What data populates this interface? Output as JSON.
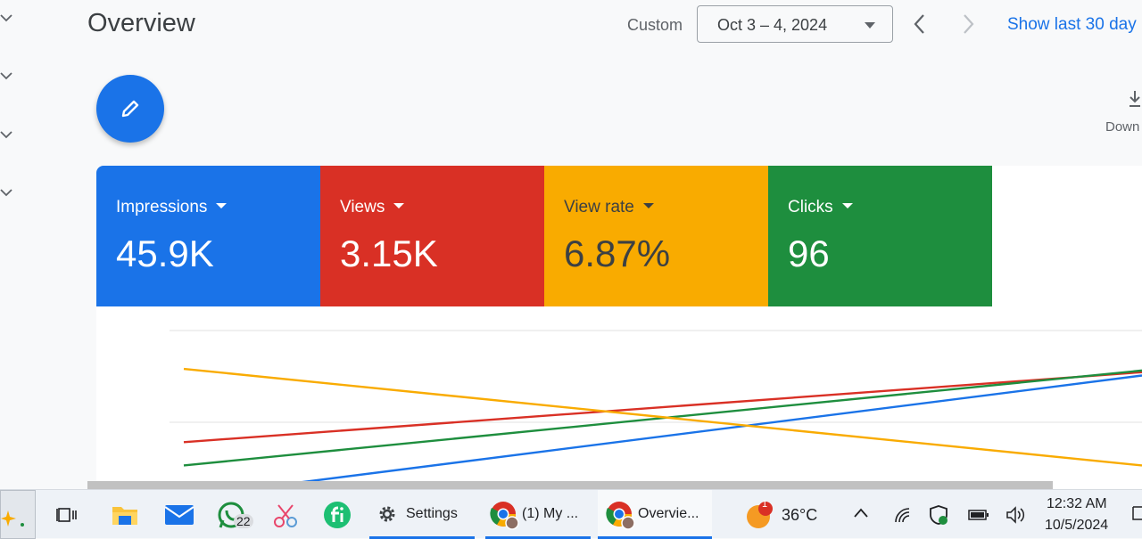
{
  "header": {
    "title": "Overview",
    "custom_label": "Custom",
    "date_range": "Oct 3 – 4, 2024",
    "show_last": "Show last 30 day",
    "download_label": "Down"
  },
  "metrics": [
    {
      "label": "Impressions",
      "value": "45.9K",
      "color": "#1a73e8",
      "text_color": "#ffffff"
    },
    {
      "label": "Views",
      "value": "3.15K",
      "color": "#d93025",
      "text_color": "#ffffff"
    },
    {
      "label": "View rate",
      "value": "6.87%",
      "color": "#f9ab00",
      "text_color": "#3c4043"
    },
    {
      "label": "Clicks",
      "value": "96",
      "color": "#1e8e3e",
      "text_color": "#ffffff"
    }
  ],
  "chart_data": {
    "type": "line",
    "grid": true,
    "series": [
      {
        "color": "#1a73e8",
        "start": 0.0,
        "end": 0.73
      },
      {
        "color": "#d93025",
        "start": 0.33,
        "end": 0.75
      },
      {
        "color": "#1e8e3e",
        "start": 0.19,
        "end": 0.76
      },
      {
        "color": "#f9ab00",
        "start": 0.77,
        "end": 0.19
      }
    ]
  },
  "taskbar": {
    "whatsapp_badge": "22",
    "settings_label": "Settings",
    "chrome1_label": "(1) My ...",
    "chrome2_label": "Overvie...",
    "weather_badge": "1",
    "temperature": "36°C",
    "time": "12:32 AM",
    "date": "10/5/2024"
  },
  "colors": {
    "accent": "#1a73e8"
  }
}
